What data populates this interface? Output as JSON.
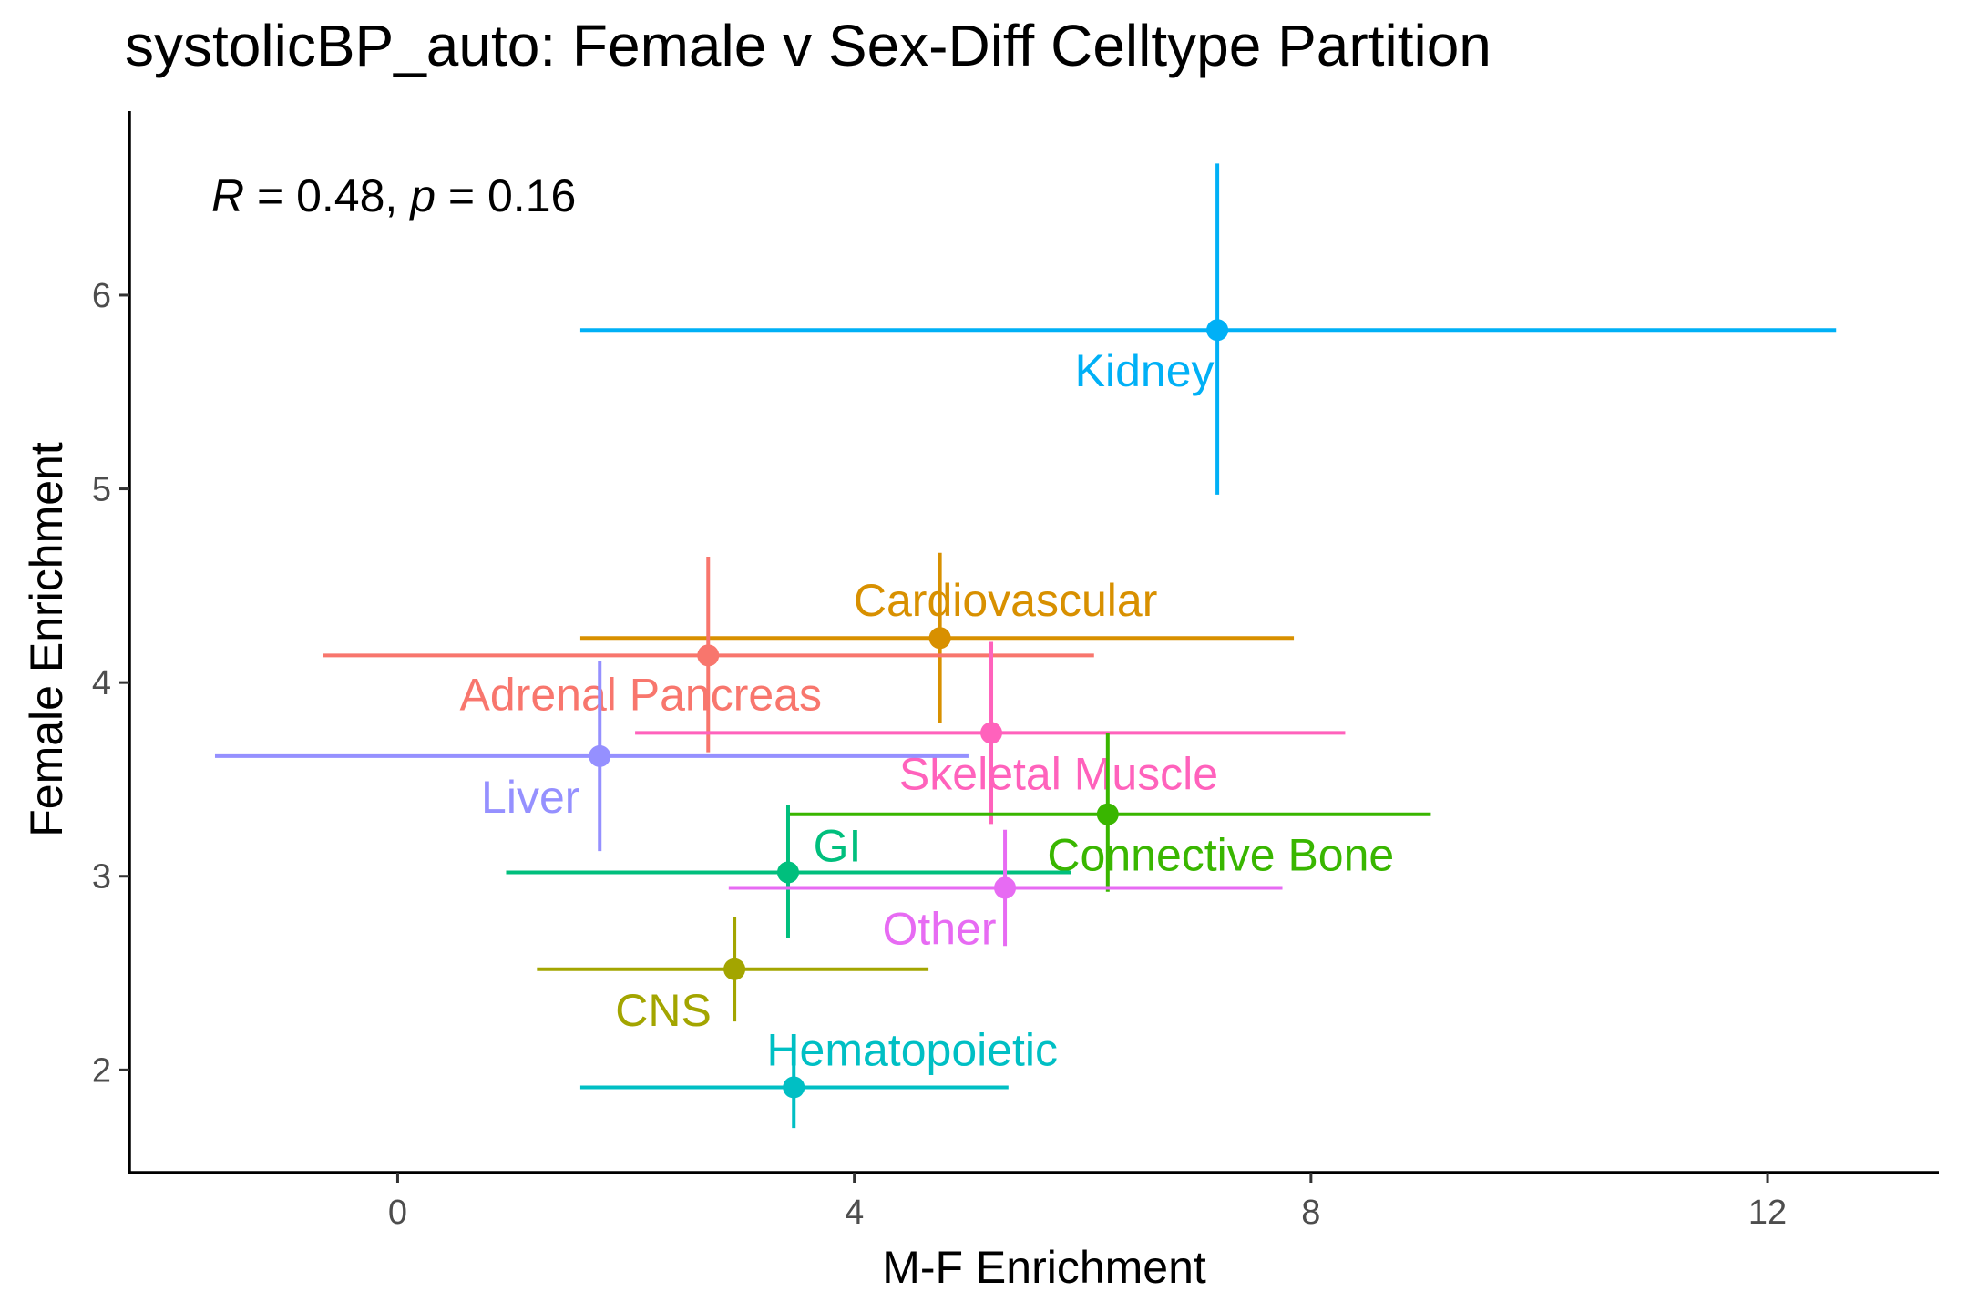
{
  "chart_data": {
    "type": "scatter",
    "title": "systolicBP_auto: Female v Sex-Diff Celltype Partition",
    "xlabel": "M-F Enrichment",
    "ylabel": "Female Enrichment",
    "xlim": [
      -2.35,
      13.5
    ],
    "ylim": [
      1.47,
      6.95
    ],
    "x_ticks": [
      0,
      4,
      8,
      12
    ],
    "y_ticks": [
      2,
      3,
      4,
      5,
      6
    ],
    "grid": false,
    "legend": "none",
    "annotation": {
      "r_symbol": "R",
      "r_text": " = 0.48, ",
      "p_symbol": "p",
      "p_text": " = 0.16"
    },
    "series": [
      {
        "name": "Kidney",
        "x": 7.18,
        "y": 5.82,
        "x_low": 1.6,
        "x_high": 12.6,
        "y_low": 4.97,
        "y_high": 6.68,
        "color": "#00B0F6"
      },
      {
        "name": "Cardiovascular",
        "x": 4.75,
        "y": 4.23,
        "x_low": 1.6,
        "x_high": 7.85,
        "y_low": 3.79,
        "y_high": 4.67,
        "color": "#D89000"
      },
      {
        "name": "Adrenal Pancreas",
        "x": 2.72,
        "y": 4.14,
        "x_low": -0.65,
        "x_high": 6.1,
        "y_low": 3.64,
        "y_high": 4.65,
        "color": "#F8766D"
      },
      {
        "name": "Skeletal Muscle",
        "x": 5.2,
        "y": 3.74,
        "x_low": 2.08,
        "x_high": 8.3,
        "y_low": 3.27,
        "y_high": 4.21,
        "color": "#FF62BC"
      },
      {
        "name": "Liver",
        "x": 1.77,
        "y": 3.62,
        "x_low": -1.6,
        "x_high": 5.0,
        "y_low": 3.13,
        "y_high": 4.11,
        "color": "#9590FF"
      },
      {
        "name": "Connective Bone",
        "x": 6.22,
        "y": 3.32,
        "x_low": 3.42,
        "x_high": 9.05,
        "y_low": 2.92,
        "y_high": 3.74,
        "color": "#39B600"
      },
      {
        "name": "GI",
        "x": 3.42,
        "y": 3.02,
        "x_low": 0.95,
        "x_high": 5.9,
        "y_low": 2.68,
        "y_high": 3.37,
        "color": "#00BF7D"
      },
      {
        "name": "Other",
        "x": 5.32,
        "y": 2.94,
        "x_low": 2.9,
        "x_high": 7.75,
        "y_low": 2.64,
        "y_high": 3.24,
        "color": "#E76BF3"
      },
      {
        "name": "CNS",
        "x": 2.95,
        "y": 2.52,
        "x_low": 1.22,
        "x_high": 4.65,
        "y_low": 2.25,
        "y_high": 2.79,
        "color": "#A3A500"
      },
      {
        "name": "Hematopoietic",
        "x": 3.47,
        "y": 1.91,
        "x_low": 1.6,
        "x_high": 5.35,
        "y_low": 1.7,
        "y_high": 2.12,
        "color": "#00BFC4"
      }
    ]
  }
}
